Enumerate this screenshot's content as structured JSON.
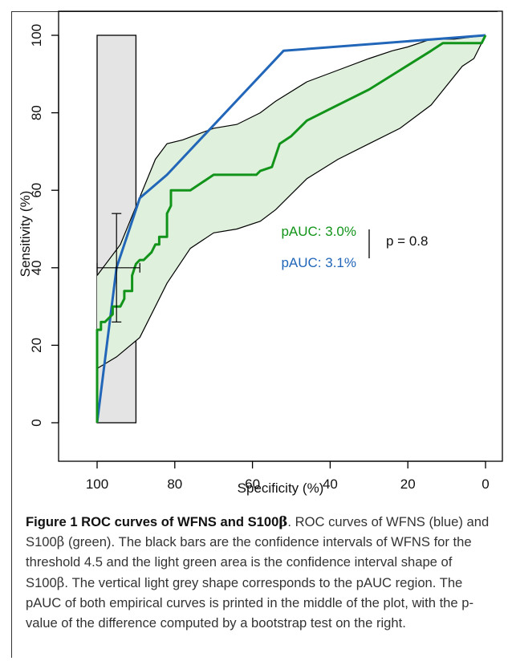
{
  "chart_data": {
    "type": "line",
    "xlabel": "Specificity (%)",
    "ylabel": "Sensitivity (%)",
    "xlim": [
      100,
      0
    ],
    "ylim": [
      0,
      100
    ],
    "x_reversed": true,
    "xticks": [
      "100",
      "80",
      "60",
      "40",
      "20",
      "0"
    ],
    "yticks": [
      "0",
      "20",
      "40",
      "60",
      "80",
      "100"
    ],
    "grid": false,
    "colors": {
      "wfns": "#2166b8",
      "s100b": "#12941a",
      "band_fill": "#dff0dc",
      "band_edge": "#000000",
      "pauc_region": "#e4e4e4"
    },
    "pauc_region": {
      "spec_from": 100,
      "spec_to": 90,
      "sens_from": 0,
      "sens_to": 100
    },
    "series": [
      {
        "key": "wfns",
        "x": [
          100,
          95,
          89,
          82,
          52,
          0
        ],
        "y": [
          0,
          40,
          58,
          64,
          96,
          100
        ]
      },
      {
        "key": "s100b",
        "x": [
          100,
          100,
          99,
          99,
          98,
          96,
          96,
          94,
          93,
          93,
          91,
          91,
          90,
          89,
          88,
          86,
          85,
          84,
          84,
          82,
          82,
          81,
          81,
          78,
          76,
          70,
          63,
          59,
          58,
          55,
          53,
          50,
          46,
          38,
          30,
          22,
          14,
          11,
          5,
          1,
          0
        ],
        "y": [
          0,
          24,
          24,
          26,
          26,
          28,
          30,
          30,
          32,
          34,
          34,
          38,
          41,
          42,
          42,
          44,
          46,
          46,
          48,
          48,
          54,
          56,
          60,
          60,
          60,
          64,
          64,
          64,
          65,
          66,
          72,
          74,
          78,
          82,
          86,
          91,
          96,
          98,
          98,
          98,
          100
        ]
      }
    ],
    "ci_band": {
      "upper": {
        "x": [
          100,
          94,
          85,
          82,
          78,
          70,
          64,
          58,
          54,
          46,
          38,
          30,
          24,
          20,
          14,
          8,
          0
        ],
        "y": [
          38,
          46,
          68,
          72,
          73,
          76,
          77,
          80,
          83,
          88,
          91,
          94,
          96,
          97,
          99,
          99,
          100
        ]
      },
      "lower": {
        "x": [
          100,
          95,
          89,
          82,
          76,
          70,
          64,
          58,
          54,
          46,
          38,
          30,
          22,
          14,
          6,
          3,
          0
        ],
        "y": [
          14,
          17,
          22,
          36,
          45,
          49,
          50,
          52,
          55,
          63,
          68,
          72,
          76,
          82,
          92,
          94,
          100
        ]
      }
    },
    "ci_bars": {
      "specificity": 95,
      "sensitivity": 40,
      "spec_ci": [
        100,
        89
      ],
      "sens_ci": [
        26,
        54
      ]
    },
    "annotations": [
      {
        "key": "s100b_pauc",
        "text": "pAUC: 3.0%"
      },
      {
        "key": "wfns_pauc",
        "text": "pAUC: 3.1%"
      },
      {
        "key": "p_value",
        "text": "p = 0.8"
      }
    ]
  },
  "caption": {
    "label": "Figure 1 ROC curves of WFNS and S100",
    "label_symbol": "β",
    "text_1": ". ROC curves of WFNS (blue) and S100",
    "sym_1": "β",
    "text_2": " (green). The black bars are the confidence intervals of WFNS for the threshold 4.5 and the light green area is the confidence interval shape of S100",
    "sym_2": "β",
    "text_3": ". The vertical light grey shape corresponds to the pAUC region. The pAUC of both empirical curves is printed in the middle of the plot, with the p-value of the difference computed by a bootstrap test on the right."
  }
}
